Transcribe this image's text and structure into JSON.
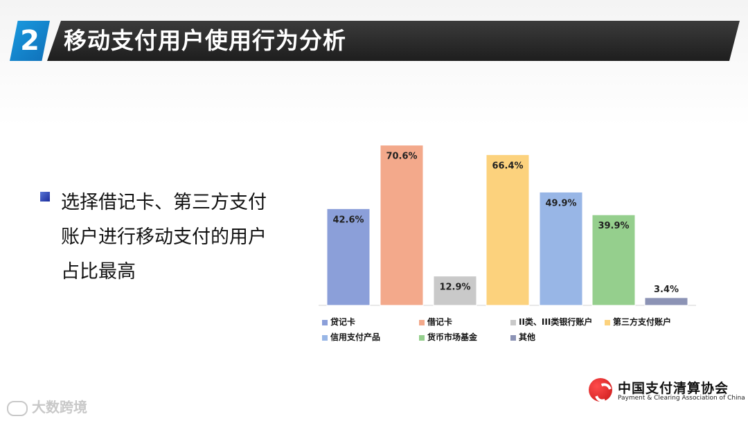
{
  "header": {
    "section_number": "2",
    "title": "移动支付用户使用行为分析"
  },
  "bullet": {
    "lines": [
      "选择借记卡、第三方支付",
      "账户进行移动支付的用户",
      "占比最高"
    ]
  },
  "chart_data": {
    "type": "bar",
    "categories": [
      "贷记卡",
      "借记卡",
      "II类、III类银行账户",
      "第三方支付账户",
      "信用支付产品",
      "货币市场基金",
      "其他"
    ],
    "values": [
      42.6,
      70.6,
      12.9,
      66.4,
      49.9,
      39.9,
      3.4
    ],
    "value_labels": [
      "42.6%",
      "70.6%",
      "12.9%",
      "66.4%",
      "49.9%",
      "39.9%",
      "3.4%"
    ],
    "colors": [
      "#8b9fd9",
      "#f3a98b",
      "#c9c9c9",
      "#fcd27d",
      "#98b6e6",
      "#95cf8d",
      "#8c93b5"
    ],
    "ylim": [
      0,
      72
    ],
    "grid": false,
    "legend_position": "bottom",
    "title": "",
    "xlabel": "",
    "ylabel": ""
  },
  "logo": {
    "cn": "中国支付清算协会",
    "en": "Payment & Clearing Association of China"
  },
  "watermark": {
    "text": "大数跨境"
  }
}
